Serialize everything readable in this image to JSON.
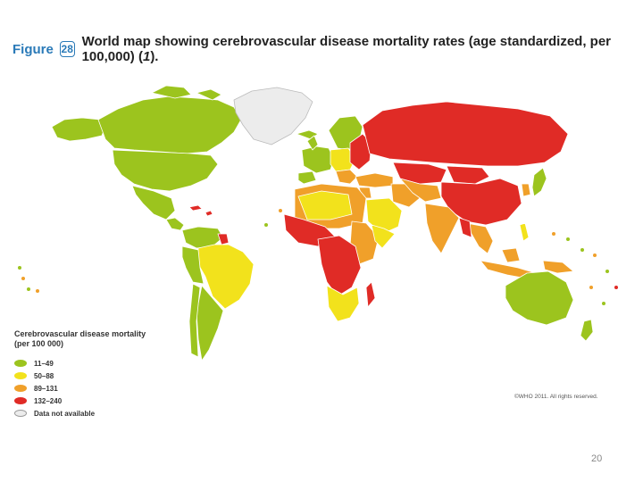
{
  "figure": {
    "label": "Figure",
    "number": "28",
    "title": "World map showing cerebrovascular disease mortality rates (age standardized, per 100,000) (",
    "reference": "1",
    "title_end": ")."
  },
  "legend": {
    "heading_line1": "Cerebrovascular disease mortality",
    "heading_line2": "(per 100 000)",
    "items": [
      {
        "label": "11–49",
        "color": "#9cc41e"
      },
      {
        "label": "50–88",
        "color": "#f2e21c"
      },
      {
        "label": "89–131",
        "color": "#f0a02a"
      },
      {
        "label": "132–240",
        "color": "#e02b26"
      },
      {
        "label": "Data not available",
        "color": "#ececec"
      }
    ]
  },
  "copyright": "©WHO 2011. All rights reserved.",
  "page_number": "20",
  "colors": {
    "low": "#9cc41e",
    "medium_low": "#f2e21c",
    "medium_high": "#f0a02a",
    "high": "#e02b26",
    "no_data": "#ececec",
    "border": "#ffffff"
  }
}
